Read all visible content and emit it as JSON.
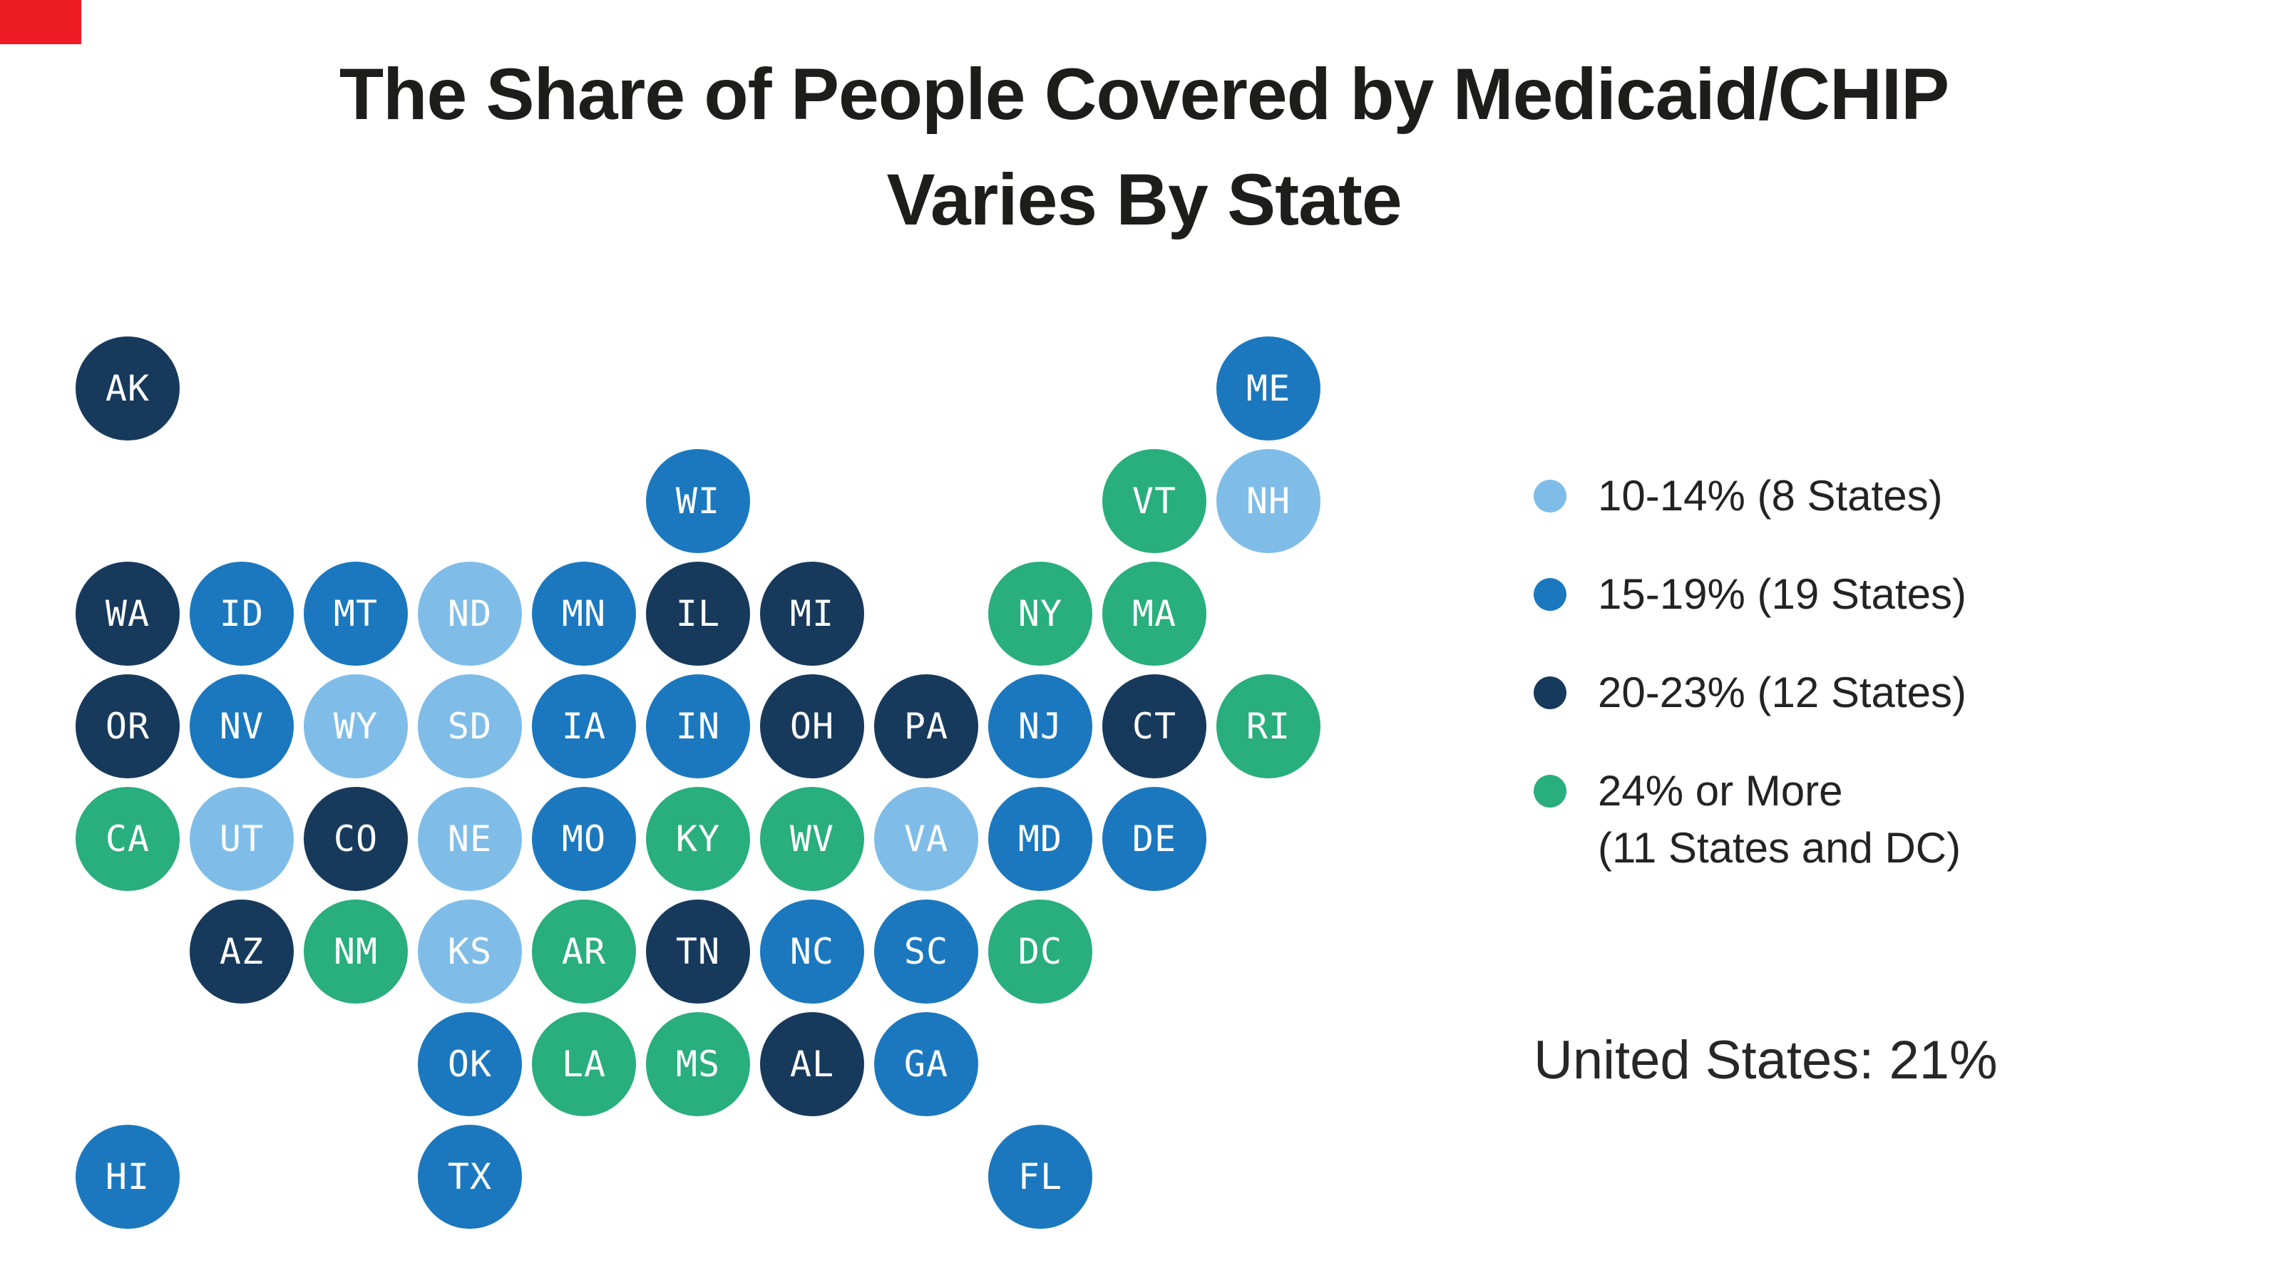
{
  "title": {
    "line1": "The Share of People Covered by Medicaid/CHIP",
    "line2": "Varies By State"
  },
  "summary": "United States: 21%",
  "brand": {
    "accent_red": "#EE1C25"
  },
  "chart_data": {
    "type": "tile-map",
    "title": "The Share of People Covered by Medicaid/CHIP Varies By State",
    "legend_position": "right",
    "national_average_label": "United States: 21%",
    "national_average_value": "21%",
    "bands": [
      {
        "id": "10-14",
        "range": "10-14%",
        "count": 8,
        "color": "#7FBDE8",
        "label_lines": [
          "10-14% (8 States)"
        ]
      },
      {
        "id": "15-19",
        "range": "15-19%",
        "count": 19,
        "color": "#1B78BE",
        "label_lines": [
          "15-19% (19 States)"
        ]
      },
      {
        "id": "20-23",
        "range": "20-23%",
        "count": 12,
        "color": "#173A5C",
        "label_lines": [
          "20-23% (12 States)"
        ]
      },
      {
        "id": "24-plus",
        "range": "24% or More",
        "count": 12,
        "color": "#29AE7D",
        "label_lines": [
          "24% or More",
          "(11 States and DC)"
        ]
      }
    ],
    "states": [
      {
        "abbr": "AK",
        "band": 2,
        "col": 0,
        "row": 0
      },
      {
        "abbr": "ME",
        "band": 1,
        "col": 10,
        "row": 0
      },
      {
        "abbr": "WI",
        "band": 1,
        "col": 5,
        "row": 1
      },
      {
        "abbr": "VT",
        "band": 3,
        "col": 9,
        "row": 1
      },
      {
        "abbr": "NH",
        "band": 0,
        "col": 10,
        "row": 1
      },
      {
        "abbr": "WA",
        "band": 2,
        "col": 0,
        "row": 2
      },
      {
        "abbr": "ID",
        "band": 1,
        "col": 1,
        "row": 2
      },
      {
        "abbr": "MT",
        "band": 1,
        "col": 2,
        "row": 2
      },
      {
        "abbr": "ND",
        "band": 0,
        "col": 3,
        "row": 2
      },
      {
        "abbr": "MN",
        "band": 1,
        "col": 4,
        "row": 2
      },
      {
        "abbr": "IL",
        "band": 2,
        "col": 5,
        "row": 2
      },
      {
        "abbr": "MI",
        "band": 2,
        "col": 6,
        "row": 2
      },
      {
        "abbr": "NY",
        "band": 3,
        "col": 8,
        "row": 2
      },
      {
        "abbr": "MA",
        "band": 3,
        "col": 9,
        "row": 2
      },
      {
        "abbr": "OR",
        "band": 2,
        "col": 0,
        "row": 3
      },
      {
        "abbr": "NV",
        "band": 1,
        "col": 1,
        "row": 3
      },
      {
        "abbr": "WY",
        "band": 0,
        "col": 2,
        "row": 3
      },
      {
        "abbr": "SD",
        "band": 0,
        "col": 3,
        "row": 3
      },
      {
        "abbr": "IA",
        "band": 1,
        "col": 4,
        "row": 3
      },
      {
        "abbr": "IN",
        "band": 1,
        "col": 5,
        "row": 3
      },
      {
        "abbr": "OH",
        "band": 2,
        "col": 6,
        "row": 3
      },
      {
        "abbr": "PA",
        "band": 2,
        "col": 7,
        "row": 3
      },
      {
        "abbr": "NJ",
        "band": 1,
        "col": 8,
        "row": 3
      },
      {
        "abbr": "CT",
        "band": 2,
        "col": 9,
        "row": 3
      },
      {
        "abbr": "RI",
        "band": 3,
        "col": 10,
        "row": 3
      },
      {
        "abbr": "CA",
        "band": 3,
        "col": 0,
        "row": 4
      },
      {
        "abbr": "UT",
        "band": 0,
        "col": 1,
        "row": 4
      },
      {
        "abbr": "CO",
        "band": 2,
        "col": 2,
        "row": 4
      },
      {
        "abbr": "NE",
        "band": 0,
        "col": 3,
        "row": 4
      },
      {
        "abbr": "MO",
        "band": 1,
        "col": 4,
        "row": 4
      },
      {
        "abbr": "KY",
        "band": 3,
        "col": 5,
        "row": 4
      },
      {
        "abbr": "WV",
        "band": 3,
        "col": 6,
        "row": 4
      },
      {
        "abbr": "VA",
        "band": 0,
        "col": 7,
        "row": 4
      },
      {
        "abbr": "MD",
        "band": 1,
        "col": 8,
        "row": 4
      },
      {
        "abbr": "DE",
        "band": 1,
        "col": 9,
        "row": 4
      },
      {
        "abbr": "AZ",
        "band": 2,
        "col": 1,
        "row": 5
      },
      {
        "abbr": "NM",
        "band": 3,
        "col": 2,
        "row": 5
      },
      {
        "abbr": "KS",
        "band": 0,
        "col": 3,
        "row": 5
      },
      {
        "abbr": "AR",
        "band": 3,
        "col": 4,
        "row": 5
      },
      {
        "abbr": "TN",
        "band": 2,
        "col": 5,
        "row": 5
      },
      {
        "abbr": "NC",
        "band": 1,
        "col": 6,
        "row": 5
      },
      {
        "abbr": "SC",
        "band": 1,
        "col": 7,
        "row": 5
      },
      {
        "abbr": "DC",
        "band": 3,
        "col": 8,
        "row": 5
      },
      {
        "abbr": "OK",
        "band": 1,
        "col": 3,
        "row": 6
      },
      {
        "abbr": "LA",
        "band": 3,
        "col": 4,
        "row": 6
      },
      {
        "abbr": "MS",
        "band": 3,
        "col": 5,
        "row": 6
      },
      {
        "abbr": "AL",
        "band": 2,
        "col": 6,
        "row": 6
      },
      {
        "abbr": "GA",
        "band": 1,
        "col": 7,
        "row": 6
      },
      {
        "abbr": "HI",
        "band": 1,
        "col": 0,
        "row": 7
      },
      {
        "abbr": "TX",
        "band": 1,
        "col": 3,
        "row": 7
      },
      {
        "abbr": "FL",
        "band": 1,
        "col": 8,
        "row": 7
      }
    ]
  }
}
